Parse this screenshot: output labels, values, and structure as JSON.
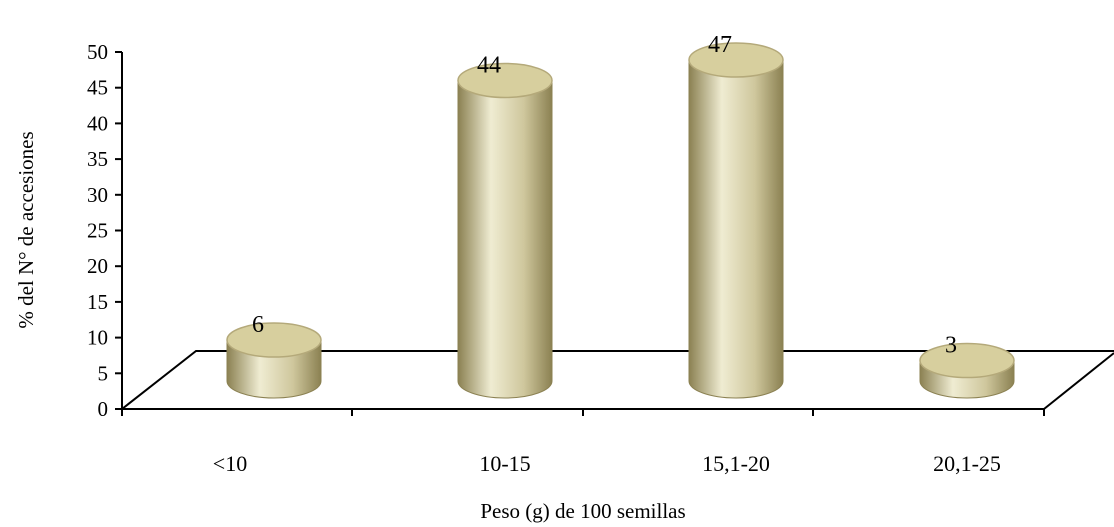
{
  "chart_data": {
    "type": "bar",
    "style": "3d-cylinder",
    "categories": [
      "<10",
      "10-15",
      "15,1-20",
      "20,1-25"
    ],
    "values": [
      6,
      44,
      47,
      3
    ],
    "data_labels": [
      "6",
      "44",
      "47",
      "3"
    ],
    "title": "",
    "xlabel": "Peso (g) de 100 semillas",
    "ylabel": "% del N° de accesiones",
    "ylim": [
      0,
      50
    ],
    "yticks": [
      "0",
      "5",
      "10",
      "15",
      "20",
      "25",
      "30",
      "35",
      "40",
      "45",
      "50"
    ],
    "grid": false,
    "legend": "none",
    "colors": {
      "bar_light": "#efecd2",
      "bar_mid": "#cfc79d",
      "bar_dark": "#8b8152",
      "bar_top": "#d7cf9e",
      "bar_top_edge": "#b4a97a",
      "floor_line": "#000000"
    }
  }
}
